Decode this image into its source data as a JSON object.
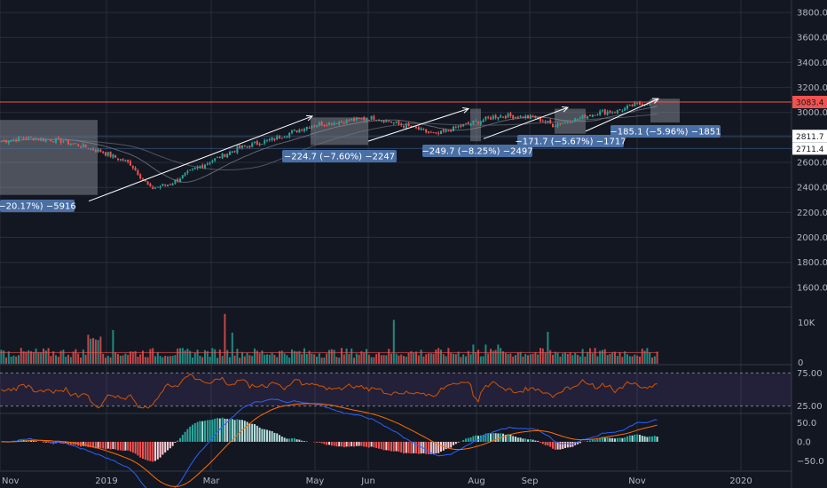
{
  "colors": {
    "background": "#131722",
    "grid": "#2a2e39",
    "up": "#26a69a",
    "down": "#ef5350",
    "axis_text": "#b2b5be",
    "measure_box": "#9598a1",
    "measure_label": "#4a6fa5",
    "rsi_line": "#d35400",
    "rsi_band": "#7e57c2",
    "macd_line": "#2962ff",
    "signal_line": "#ff6d00"
  },
  "chart_data": [
    {
      "type": "candlestick",
      "name": "price-pane",
      "x_tick_labels": [
        "Nov",
        "2019",
        "Mar",
        "May",
        "Jun",
        "Aug",
        "Sep",
        "Nov",
        "2020"
      ],
      "y_ticks": [
        1600,
        1800,
        2000,
        2200,
        2400,
        2600,
        2800,
        3000,
        3200,
        3400,
        3600,
        3800
      ],
      "y_tick_labels": [
        "1600.0",
        "1800.0",
        "2000.0",
        "2200.0",
        "2400.0",
        "2600.0",
        "2800.0",
        "3000.0",
        "3200.0",
        "3400.0",
        "3600.0",
        "3800.0"
      ],
      "ylim": [
        1450,
        3900
      ],
      "price_tags": [
        {
          "value": 3083.4,
          "text": "3083.4",
          "color": "#ef5350"
        },
        {
          "value": 2811.7,
          "text": "2811.7",
          "color": "#ffffff"
        },
        {
          "value": 2711.4,
          "text": "2711.4",
          "color": "#ffffff"
        }
      ],
      "measurements": [
        {
          "label": "−20.17%) −5916",
          "low": 2340,
          "high": 2940
        },
        {
          "label": "−224.7 (−7.60%) −2247",
          "low": 2740,
          "high": 2960
        },
        {
          "label": "−249.7 (−8.25%) −2497",
          "low": 2770,
          "high": 3030
        },
        {
          "label": "−171.7 (−5.67%) −1717",
          "low": 2830,
          "high": 3030
        },
        {
          "label": "−185.1 (−5.96%) −1851",
          "low": 2920,
          "high": 3110
        }
      ]
    },
    {
      "type": "bar",
      "name": "volume-pane",
      "y_tick_labels": [
        "10K",
        "0"
      ],
      "y_ticks": [
        10000,
        0
      ],
      "ylim": [
        0,
        14000
      ]
    },
    {
      "type": "line",
      "name": "rsi-pane",
      "y_tick_labels": [
        "75.00",
        "25.00"
      ],
      "y_ticks": [
        75,
        25
      ],
      "ylim": [
        15,
        85
      ]
    },
    {
      "type": "line",
      "name": "macd-pane",
      "y_tick_labels": [
        "50.0",
        "0.0",
        "−50.0"
      ],
      "y_ticks": [
        50,
        0,
        -50
      ],
      "ylim": [
        -75,
        70
      ]
    }
  ]
}
